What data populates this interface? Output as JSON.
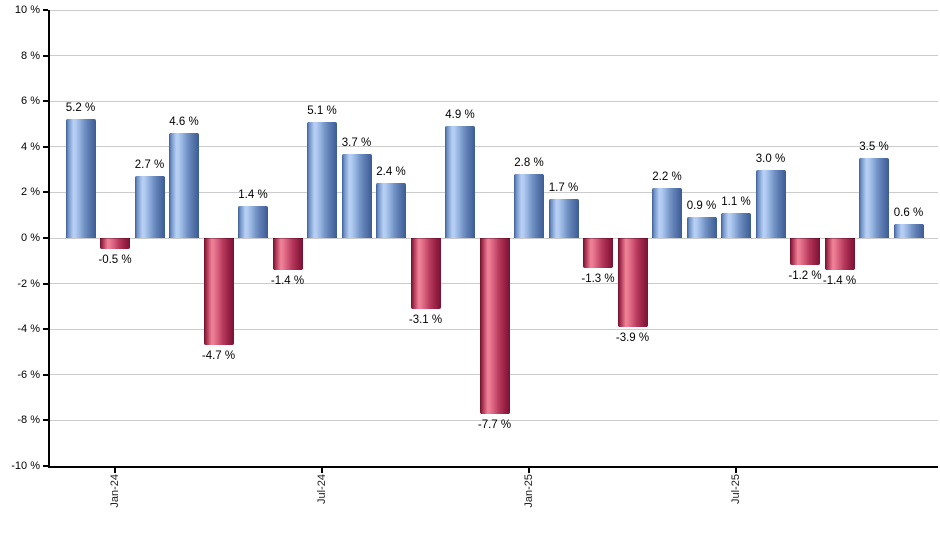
{
  "chart_data": {
    "type": "bar",
    "title": "",
    "xlabel": "",
    "ylabel": "",
    "ylim": [
      -10,
      10
    ],
    "y_tick_step": 2,
    "grid": true,
    "legend": "none",
    "y_tick_labels": [
      "10 %",
      "8 %",
      "6 %",
      "4 %",
      "2 %",
      "0 %",
      "-2 %",
      "-4 %",
      "-6 %",
      "-8 %",
      "-10 %"
    ],
    "x_tick_labels": [
      {
        "label": "Jan-24",
        "bar_index": 1
      },
      {
        "label": "Jul-24",
        "bar_index": 7
      },
      {
        "label": "Jan-25",
        "bar_index": 13
      },
      {
        "label": "Jul-25",
        "bar_index": 19
      }
    ],
    "bars": [
      {
        "value": 5.2,
        "label": "5.2 %"
      },
      {
        "value": -0.5,
        "label": "-0.5 %"
      },
      {
        "value": 2.7,
        "label": "2.7 %"
      },
      {
        "value": 4.6,
        "label": "4.6 %"
      },
      {
        "value": -4.7,
        "label": "-4.7 %"
      },
      {
        "value": 1.4,
        "label": "1.4 %"
      },
      {
        "value": -1.4,
        "label": "-1.4 %"
      },
      {
        "value": 5.1,
        "label": "5.1 %"
      },
      {
        "value": 3.7,
        "label": "3.7 %"
      },
      {
        "value": 2.4,
        "label": "2.4 %"
      },
      {
        "value": -3.1,
        "label": "-3.1 %"
      },
      {
        "value": 4.9,
        "label": "4.9 %"
      },
      {
        "value": -7.7,
        "label": "-7.7 %"
      },
      {
        "value": 2.8,
        "label": "2.8 %"
      },
      {
        "value": 1.7,
        "label": "1.7 %"
      },
      {
        "value": -1.3,
        "label": "-1.3 %"
      },
      {
        "value": -3.9,
        "label": "-3.9 %"
      },
      {
        "value": 2.2,
        "label": "2.2 %"
      },
      {
        "value": 0.9,
        "label": "0.9 %"
      },
      {
        "value": 1.1,
        "label": "1.1 %"
      },
      {
        "value": 3.0,
        "label": "3.0 %"
      },
      {
        "value": -1.2,
        "label": "-1.2 %"
      },
      {
        "value": -1.4,
        "label": "-1.4 %"
      },
      {
        "value": 3.5,
        "label": "3.5 %"
      },
      {
        "value": 0.6,
        "label": "0.6 %"
      }
    ],
    "colors": {
      "positive_bar": "#7396c9",
      "positive_bar_highlight": "#b7cff3",
      "positive_bar_edge": "#3b5b95",
      "negative_bar": "#c23a5e",
      "negative_bar_highlight": "#f08398",
      "negative_bar_edge": "#7a1232",
      "grid_line": "#cccccc",
      "axis_line": "#000000",
      "text": "#000000"
    }
  }
}
